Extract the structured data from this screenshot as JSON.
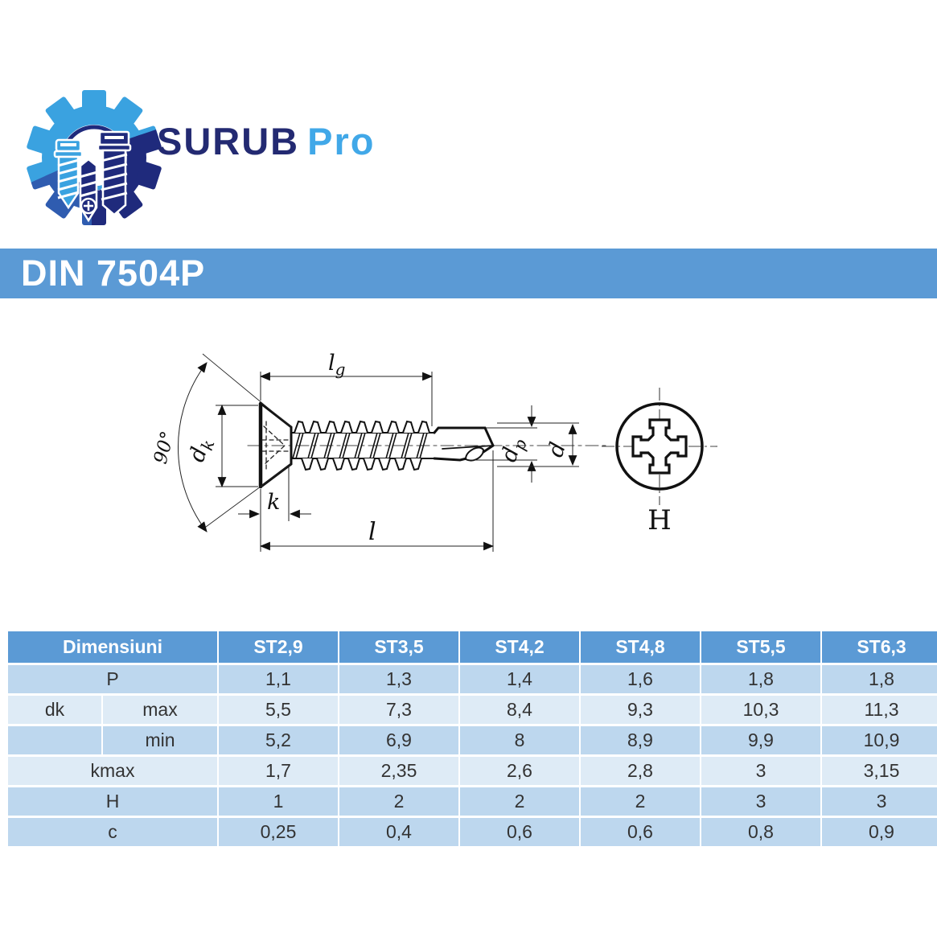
{
  "logo": {
    "text_primary": "SURUB",
    "text_secondary": "Pro",
    "icon": "gear-with-screws"
  },
  "din_header": {
    "title": "DIN 7504P"
  },
  "diagram": {
    "labels": {
      "lg": {
        "main": "l",
        "sub": "g"
      },
      "dk": {
        "main": "d",
        "sub": "k"
      },
      "angle": "90°",
      "k": "k",
      "l": "l",
      "dp": {
        "main": "d",
        "sub": "p"
      },
      "d": "d",
      "head_view": "H"
    }
  },
  "table": {
    "dim_header": "Dimensiuni",
    "columns": [
      "ST2,9",
      "ST3,5",
      "ST4,2",
      "ST4,8",
      "ST5,5",
      "ST6,3"
    ],
    "rows": [
      {
        "label": "P",
        "sub": "",
        "merged": true,
        "band": "dark",
        "values": [
          "1,1",
          "1,3",
          "1,4",
          "1,6",
          "1,8",
          "1,8"
        ]
      },
      {
        "label": "dk",
        "sub": "max",
        "merged": false,
        "band": "light",
        "values": [
          "5,5",
          "7,3",
          "8,4",
          "9,3",
          "10,3",
          "11,3"
        ]
      },
      {
        "label": "",
        "sub": "min",
        "merged": false,
        "band": "dark",
        "values": [
          "5,2",
          "6,9",
          "8",
          "8,9",
          "9,9",
          "10,9"
        ]
      },
      {
        "label": "kmax",
        "sub": "",
        "merged": true,
        "band": "light",
        "values": [
          "1,7",
          "2,35",
          "2,6",
          "2,8",
          "3",
          "3,15"
        ]
      },
      {
        "label": "H",
        "sub": "",
        "merged": true,
        "band": "dark",
        "values": [
          "1",
          "2",
          "2",
          "2",
          "3",
          "3"
        ]
      },
      {
        "label": "c",
        "sub": "",
        "merged": true,
        "band": "dark",
        "values": [
          "0,25",
          "0,4",
          "0,6",
          "0,6",
          "0,8",
          "0,9"
        ]
      }
    ]
  },
  "colors": {
    "accent_blue": "#5b9ad5",
    "band_dark": "#bdd7ee",
    "band_light": "#deebf6",
    "logo_navy": "#1f2a7c",
    "logo_light_blue": "#3aa2e0",
    "logo_mid_blue": "#2f5cb0",
    "wordmark_navy": "#232a72",
    "wordmark_blue": "#41a8e8"
  }
}
